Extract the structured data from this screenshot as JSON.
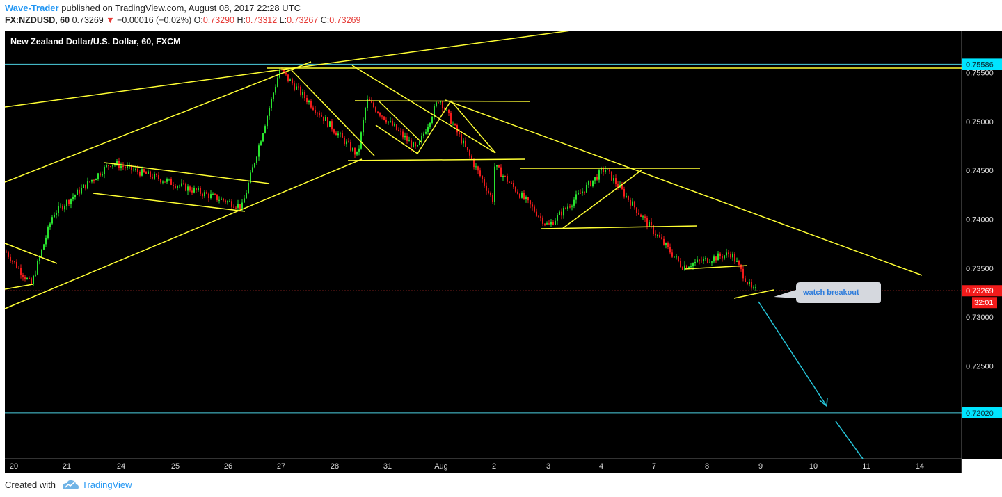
{
  "header": {
    "author": "Wave-Trader",
    "published_text": "published on TradingView.com, August 08, 2017 22:28 UTC",
    "symbol": "FX:NZDUSD, 60",
    "last": "0.73269",
    "change_arrow": "▼",
    "change": "−0.00016 (−0.02%)",
    "o_label": "O:",
    "o": "0.73290",
    "h_label": "H:",
    "h": "0.73312",
    "l_label": "L:",
    "l": "0.73267",
    "c_label": "C:",
    "c": "0.73269"
  },
  "chart_data": {
    "type": "candlestick",
    "title": "New Zealand Dollar/U.S. Dollar, 60, FXCM",
    "x_ticks": [
      "20",
      "21",
      "24",
      "25",
      "26",
      "27",
      "28",
      "31",
      "Aug",
      "2",
      "3",
      "4",
      "7",
      "8",
      "9",
      "10",
      "11",
      "14"
    ],
    "y_ticks": [
      "0.75500",
      "0.75000",
      "0.74500",
      "0.74000",
      "0.73500",
      "0.73000",
      "0.72500"
    ],
    "ylim": [
      0.7155,
      0.7593
    ],
    "price_labels": [
      {
        "text": "0.75586",
        "value": 0.75586,
        "color": "#00e5ff",
        "text_color": "#0a2a33"
      },
      {
        "text": "0.73269",
        "value": 0.73269,
        "color": "#f21b1b",
        "text_color": "#ffffff"
      },
      {
        "text": "0.72020",
        "value": 0.7202,
        "color": "#00e5ff",
        "text_color": "#0a2a33"
      }
    ],
    "countdown": "32:01",
    "horizontal_lines": [
      {
        "value": 0.75586,
        "color": "#4dd0e1"
      },
      {
        "value": 0.7202,
        "color": "#4dd0e1"
      },
      {
        "value": 0.73269,
        "color": "#e53935",
        "style": "dotted"
      }
    ],
    "key_points": [
      {
        "x": "20",
        "value": 0.7367
      },
      {
        "x": "20",
        "value": 0.7333
      },
      {
        "x": "21",
        "value": 0.7405
      },
      {
        "x": "24",
        "value": 0.7458
      },
      {
        "x": "26",
        "value": 0.7413
      },
      {
        "x": "27",
        "value": 0.7553
      },
      {
        "x": "28",
        "value": 0.7465
      },
      {
        "x": "31",
        "value": 0.7522
      },
      {
        "x": "31",
        "value": 0.7471
      },
      {
        "x": "Aug",
        "value": 0.7524
      },
      {
        "x": "2",
        "value": 0.742
      },
      {
        "x": "2",
        "value": 0.7455
      },
      {
        "x": "3",
        "value": 0.7393
      },
      {
        "x": "4",
        "value": 0.7452
      },
      {
        "x": "7",
        "value": 0.7405
      },
      {
        "x": "7",
        "value": 0.7352
      },
      {
        "x": "8",
        "value": 0.7365
      },
      {
        "x": "9",
        "value": 0.7327
      }
    ],
    "annotation": "watch breakout",
    "colors": {
      "background": "#000000",
      "up": "#29e32f",
      "down": "#f21b1b",
      "trendline": "#ffff33",
      "arrow": "#26c6da",
      "axis_text": "#dddddd"
    }
  },
  "footer": {
    "created_with": "Created with",
    "brand": "TradingView"
  }
}
